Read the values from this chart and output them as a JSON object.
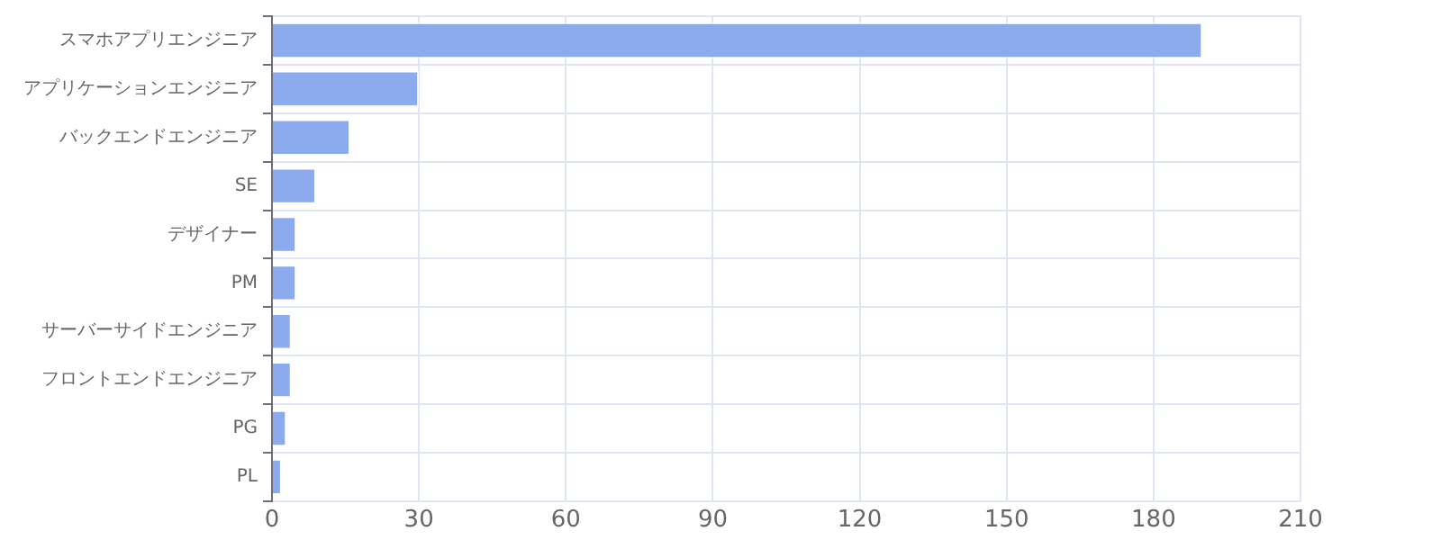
{
  "chart_data": {
    "type": "bar",
    "orientation": "horizontal",
    "categories": [
      "スマホアプリエンジニア",
      "アプリケーションエンジニア",
      "バックエンドエンジニア",
      "SE",
      "デザイナー",
      "PM",
      "サーバーサイドエンジニア",
      "フロントエンドエンジニア",
      "PG",
      "PL"
    ],
    "values": [
      190,
      30,
      16,
      9,
      5,
      5,
      4,
      4,
      3,
      2
    ],
    "color": "#8caaee",
    "xlim": [
      0,
      210
    ],
    "xticks": [
      0,
      30,
      60,
      90,
      120,
      150,
      180,
      210
    ],
    "grid": true,
    "legend": false
  }
}
